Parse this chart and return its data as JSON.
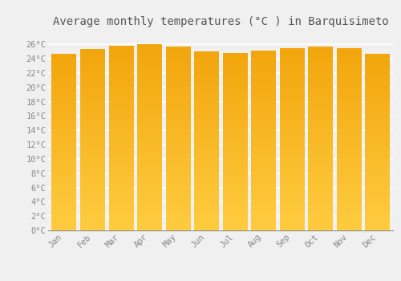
{
  "title": "Average monthly temperatures (°C ) in Barquisimeto",
  "months": [
    "Jan",
    "Feb",
    "Mar",
    "Apr",
    "May",
    "Jun",
    "Jul",
    "Aug",
    "Sep",
    "Oct",
    "Nov",
    "Dec"
  ],
  "values": [
    24.6,
    25.3,
    25.8,
    26.0,
    25.6,
    25.0,
    24.7,
    25.1,
    25.4,
    25.6,
    25.4,
    24.6
  ],
  "bar_color": "#FFC020",
  "bar_edge_color": "#E8A800",
  "background_color": "#F0F0F0",
  "plot_bg_color": "#F0F0F0",
  "grid_color": "#FFFFFF",
  "ytick_labels": [
    "0°C",
    "2°C",
    "4°C",
    "6°C",
    "8°C",
    "10°C",
    "12°C",
    "14°C",
    "16°C",
    "18°C",
    "20°C",
    "22°C",
    "24°C",
    "26°C"
  ],
  "ytick_values": [
    0,
    2,
    4,
    6,
    8,
    10,
    12,
    14,
    16,
    18,
    20,
    22,
    24,
    26
  ],
  "ylim": [
    0,
    27.5
  ],
  "title_fontsize": 10,
  "tick_fontsize": 7.5,
  "font_family": "monospace",
  "tick_color": "#888888",
  "title_color": "#555555"
}
